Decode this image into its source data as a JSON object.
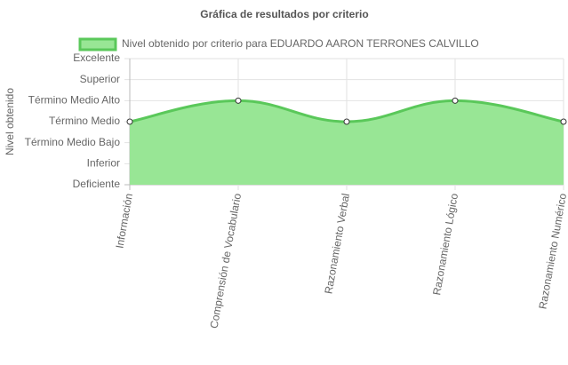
{
  "chart_data": {
    "type": "line",
    "title": "Gráfica de resultados por criterio",
    "y_label": "Nivel obtenido",
    "categories": [
      "Información",
      "Comprensión de Vocabulario",
      "Razonamiento Verbal",
      "Razonamiento Lógico",
      "Razonamiento Numérico"
    ],
    "series": [
      {
        "name": "Nivel obtenido por criterio para EDUARDO AARON TERRONES CALVILLO",
        "color": "#5ac85a",
        "fill": "#98e695",
        "values": [
          3,
          4,
          3,
          4,
          3
        ]
      }
    ],
    "ylim": [
      0,
      6
    ],
    "yticks": [
      {
        "value": 0,
        "label": "Deficiente"
      },
      {
        "value": 1,
        "label": "Inferior"
      },
      {
        "value": 2,
        "label": "Término Medio Bajo"
      },
      {
        "value": 3,
        "label": "Término Medio"
      },
      {
        "value": 4,
        "label": "Término Medio Alto"
      },
      {
        "value": 5,
        "label": "Superior"
      },
      {
        "value": 6,
        "label": "Excelente"
      }
    ],
    "grid": true
  }
}
